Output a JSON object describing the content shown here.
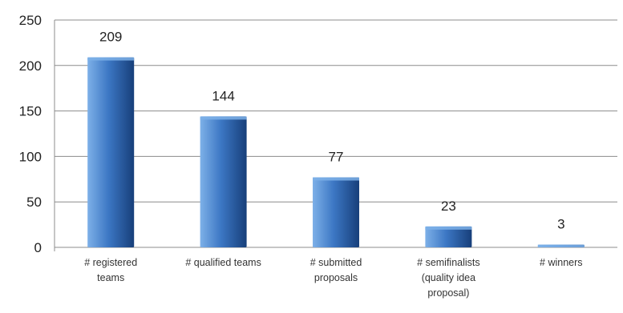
{
  "chart_data": {
    "type": "bar",
    "categories": [
      [
        "# registered",
        "teams"
      ],
      [
        "# qualified teams"
      ],
      [
        "# submitted",
        "proposals"
      ],
      [
        "# semifinalists",
        "(quality idea",
        "proposal)"
      ],
      [
        "# winners"
      ]
    ],
    "values": [
      209,
      144,
      77,
      23,
      3
    ],
    "ylim": [
      0,
      250
    ],
    "yticks": [
      0,
      50,
      100,
      150,
      200,
      250
    ],
    "grid": true,
    "legend": "none",
    "colors": {
      "bar_light": "#7db0e8",
      "bar_mid": "#3c77c4",
      "bar_dark": "#173f7a",
      "grid": "#8c8c8c",
      "axis": "#8c8c8c"
    }
  }
}
